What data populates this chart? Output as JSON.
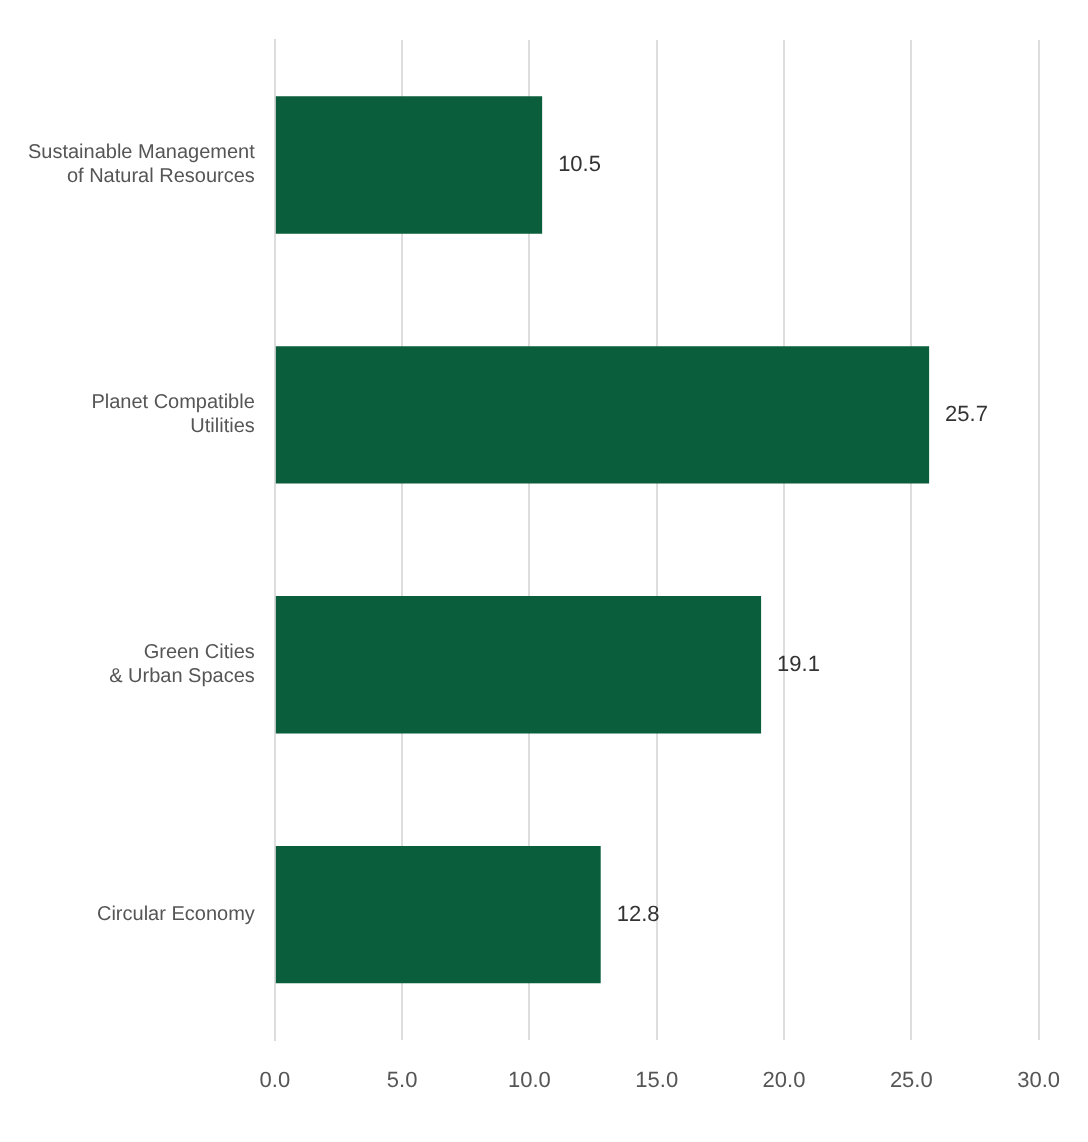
{
  "chart_data": {
    "type": "bar",
    "orientation": "horizontal",
    "categories": [
      "Sustainable Management\nof Natural Resources",
      "Planet Compatible\nUtilities",
      "Green Cities\n& Urban Spaces",
      "Circular Economy"
    ],
    "values": [
      10.5,
      25.7,
      19.1,
      12.8
    ],
    "color": "#0b5e3b",
    "xlim": [
      0,
      30
    ],
    "xticks": [
      {
        "value": 0,
        "label": "0.0"
      },
      {
        "value": 5,
        "label": "5.0"
      },
      {
        "value": 10,
        "label": "10.0"
      },
      {
        "value": 15,
        "label": "15.0"
      },
      {
        "value": 20,
        "label": "20.0"
      },
      {
        "value": 25,
        "label": "25.0"
      },
      {
        "value": 30,
        "label": "30.0"
      }
    ],
    "grid": "x",
    "data_labels": true
  }
}
